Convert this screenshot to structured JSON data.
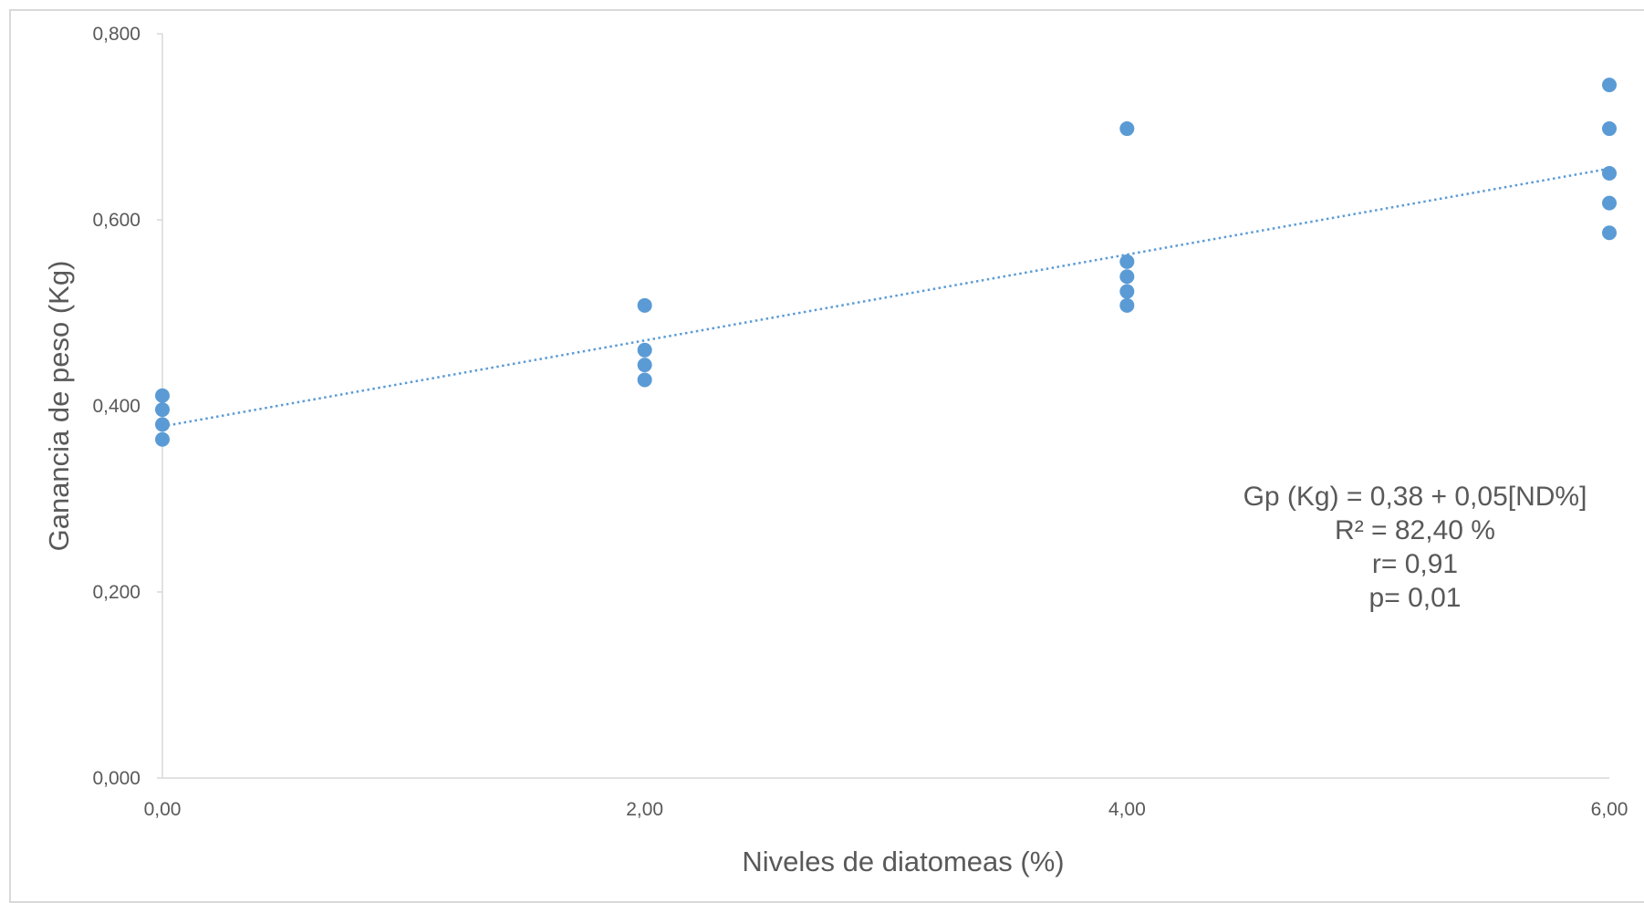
{
  "chart_data": {
    "type": "scatter",
    "title": "",
    "xlabel": "Niveles de diatomeas (%)",
    "ylabel": "Ganancia de peso (Kg)",
    "xlim": [
      0,
      6
    ],
    "ylim": [
      0,
      0.8
    ],
    "x_ticks": [
      0,
      2,
      4,
      6
    ],
    "y_ticks": [
      0,
      0.2,
      0.4,
      0.6,
      0.8
    ],
    "x_tick_labels": [
      "0,00",
      "2,00",
      "4,00",
      "6,00"
    ],
    "y_tick_labels": [
      "0,000",
      "0,200",
      "0,400",
      "0,600",
      "0,800"
    ],
    "grid": false,
    "legend": "none",
    "series": [
      {
        "color": "#5b9bd5",
        "points": [
          {
            "x": 0,
            "y": 0.411
          },
          {
            "x": 0,
            "y": 0.396
          },
          {
            "x": 0,
            "y": 0.38
          },
          {
            "x": 0,
            "y": 0.364
          },
          {
            "x": 2,
            "y": 0.508
          },
          {
            "x": 2,
            "y": 0.46
          },
          {
            "x": 2,
            "y": 0.444
          },
          {
            "x": 2,
            "y": 0.428
          },
          {
            "x": 4,
            "y": 0.698
          },
          {
            "x": 4,
            "y": 0.555
          },
          {
            "x": 4,
            "y": 0.539
          },
          {
            "x": 4,
            "y": 0.523
          },
          {
            "x": 4,
            "y": 0.508
          },
          {
            "x": 6,
            "y": 0.745
          },
          {
            "x": 6,
            "y": 0.698
          },
          {
            "x": 6,
            "y": 0.65
          },
          {
            "x": 6,
            "y": 0.618
          },
          {
            "x": 6,
            "y": 0.586
          }
        ]
      }
    ],
    "trendline": {
      "type": "linear",
      "style": "dotted",
      "color": "#5b9bd5",
      "x": [
        0,
        6
      ],
      "y": [
        0.378,
        0.655
      ]
    },
    "annotation": [
      "Gp (Kg)  = 0,38 + 0,05[ND%]",
      "R² = 82,40 %",
      "r= 0,91",
      "p= 0,01"
    ],
    "colors": {
      "marker": "#5b9bd5",
      "axis": "#d9d9d9",
      "text": "#595959"
    }
  }
}
